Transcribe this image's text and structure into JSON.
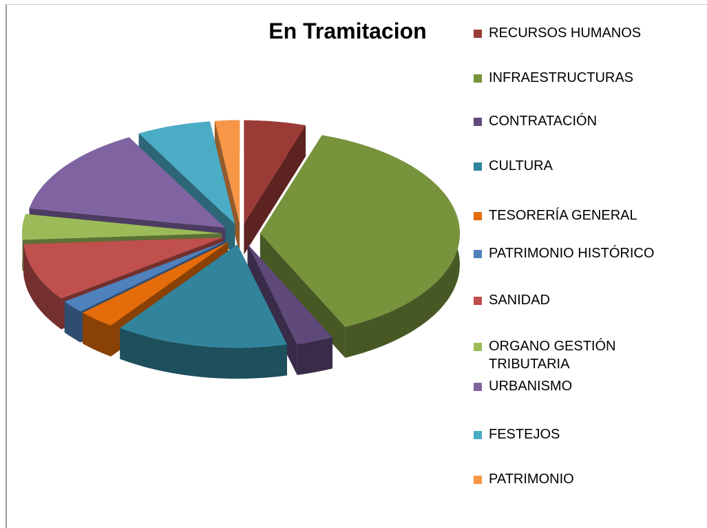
{
  "chart_data": {
    "type": "pie3d",
    "title": "En Tramitacion",
    "categories": [
      "RECURSOS HUMANOS",
      "INFRAESTRUCTURAS",
      "CONTRATACIÓN",
      "CULTURA",
      "TESORERÍA GENERAL",
      "PATRIMONIO HISTÓRICO",
      "SANIDAD",
      "ORGANO GESTIÓN TRIBUTARIA",
      "URBANISMO",
      "FESTEJOS",
      "PATRIMONIO"
    ],
    "values": [
      5,
      38,
      3,
      14,
      3,
      2,
      9,
      4,
      14,
      6,
      2
    ],
    "colors": [
      "#9b3b36",
      "#77933c",
      "#5f497a",
      "#31849b",
      "#e46c0a",
      "#4f81bd",
      "#c0504d",
      "#9bbb59",
      "#8064a2",
      "#4bacc6",
      "#f79646"
    ],
    "legend": "right"
  }
}
